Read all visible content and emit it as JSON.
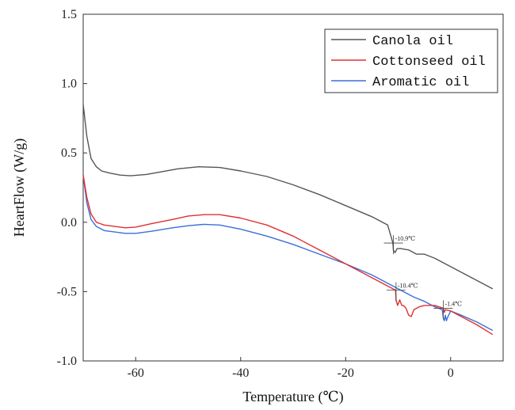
{
  "chart_data": {
    "type": "line",
    "title": "",
    "xlabel": "Temperature (℃)",
    "ylabel": "HeartFlow (W/g)",
    "xlim": [
      -70,
      10
    ],
    "ylim": [
      -1.0,
      1.5
    ],
    "x_ticks": [
      -60,
      -40,
      -20,
      0
    ],
    "x_tick_labels": [
      "-60",
      "-40",
      "-20",
      "0"
    ],
    "y_ticks": [
      -1.0,
      -0.5,
      0.0,
      0.5,
      1.0,
      1.5
    ],
    "y_tick_labels": [
      "-1.0",
      "-0.5",
      "0.0",
      "0.5",
      "1.0",
      "1.5"
    ],
    "grid": false,
    "legend_position": "top-right",
    "series": [
      {
        "name": "Canola oil",
        "color": "#555555",
        "points": [
          [
            -70,
            0.85
          ],
          [
            -69.3,
            0.62
          ],
          [
            -68.5,
            0.46
          ],
          [
            -67.5,
            0.4
          ],
          [
            -66.5,
            0.37
          ],
          [
            -65,
            0.355
          ],
          [
            -63,
            0.34
          ],
          [
            -61,
            0.335
          ],
          [
            -58,
            0.345
          ],
          [
            -55,
            0.365
          ],
          [
            -52,
            0.385
          ],
          [
            -48,
            0.4
          ],
          [
            -44,
            0.395
          ],
          [
            -40,
            0.37
          ],
          [
            -35,
            0.33
          ],
          [
            -30,
            0.27
          ],
          [
            -25,
            0.2
          ],
          [
            -20,
            0.12
          ],
          [
            -15,
            0.04
          ],
          [
            -12,
            -0.02
          ],
          [
            -11,
            -0.15
          ],
          [
            -10.9,
            -0.2
          ],
          [
            -10.6,
            -0.22
          ],
          [
            -10.2,
            -0.19
          ],
          [
            -9.5,
            -0.19
          ],
          [
            -8,
            -0.2
          ],
          [
            -6.5,
            -0.23
          ],
          [
            -5,
            -0.23
          ],
          [
            -3,
            -0.26
          ],
          [
            0,
            -0.32
          ],
          [
            4,
            -0.4
          ],
          [
            8,
            -0.48
          ]
        ]
      },
      {
        "name": "Cottonseed oil",
        "color": "#e03030",
        "points": [
          [
            -70,
            0.34
          ],
          [
            -69.3,
            0.18
          ],
          [
            -68.5,
            0.06
          ],
          [
            -67.5,
            0.0
          ],
          [
            -66,
            -0.02
          ],
          [
            -64,
            -0.03
          ],
          [
            -62,
            -0.04
          ],
          [
            -60,
            -0.035
          ],
          [
            -57,
            -0.01
          ],
          [
            -53,
            0.02
          ],
          [
            -50,
            0.045
          ],
          [
            -47,
            0.055
          ],
          [
            -44,
            0.055
          ],
          [
            -40,
            0.03
          ],
          [
            -35,
            -0.02
          ],
          [
            -30,
            -0.1
          ],
          [
            -25,
            -0.2
          ],
          [
            -20,
            -0.3
          ],
          [
            -15,
            -0.4
          ],
          [
            -12,
            -0.46
          ],
          [
            -10.5,
            -0.49
          ],
          [
            -10.4,
            -0.56
          ],
          [
            -10.1,
            -0.6
          ],
          [
            -9.7,
            -0.56
          ],
          [
            -9.3,
            -0.6
          ],
          [
            -9,
            -0.6
          ],
          [
            -8.5,
            -0.62
          ],
          [
            -8,
            -0.67
          ],
          [
            -7.5,
            -0.68
          ],
          [
            -7,
            -0.63
          ],
          [
            -6,
            -0.61
          ],
          [
            -5,
            -0.6
          ],
          [
            -3,
            -0.6
          ],
          [
            -1.4,
            -0.62
          ],
          [
            -1.2,
            -0.65
          ],
          [
            -1.0,
            -0.63
          ],
          [
            0,
            -0.64
          ],
          [
            2,
            -0.68
          ],
          [
            5,
            -0.74
          ],
          [
            8,
            -0.81
          ]
        ]
      },
      {
        "name": "Aromatic oil",
        "color": "#3a6fd8",
        "points": [
          [
            -70,
            0.34
          ],
          [
            -69.3,
            0.14
          ],
          [
            -68.5,
            0.02
          ],
          [
            -67.5,
            -0.03
          ],
          [
            -66,
            -0.06
          ],
          [
            -64,
            -0.07
          ],
          [
            -62,
            -0.08
          ],
          [
            -60,
            -0.08
          ],
          [
            -57,
            -0.065
          ],
          [
            -53,
            -0.04
          ],
          [
            -50,
            -0.025
          ],
          [
            -47,
            -0.015
          ],
          [
            -44,
            -0.02
          ],
          [
            -40,
            -0.05
          ],
          [
            -35,
            -0.1
          ],
          [
            -30,
            -0.16
          ],
          [
            -25,
            -0.23
          ],
          [
            -20,
            -0.3
          ],
          [
            -15,
            -0.38
          ],
          [
            -12,
            -0.44
          ],
          [
            -10,
            -0.48
          ],
          [
            -7,
            -0.54
          ],
          [
            -5,
            -0.57
          ],
          [
            -3,
            -0.61
          ],
          [
            -1.6,
            -0.63
          ],
          [
            -1.4,
            -0.69
          ],
          [
            -1.2,
            -0.71
          ],
          [
            -1.0,
            -0.67
          ],
          [
            -0.8,
            -0.71
          ],
          [
            -0.5,
            -0.68
          ],
          [
            0,
            -0.64
          ],
          [
            2,
            -0.67
          ],
          [
            5,
            -0.72
          ],
          [
            8,
            -0.78
          ]
        ]
      }
    ],
    "annotations": [
      {
        "text": "-10.9℃",
        "x": -10.9,
        "y": -0.15
      },
      {
        "text": "-10.4℃",
        "x": -10.4,
        "y": -0.49
      },
      {
        "text": "-1.4℃",
        "x": -1.4,
        "y": -0.62
      }
    ]
  }
}
